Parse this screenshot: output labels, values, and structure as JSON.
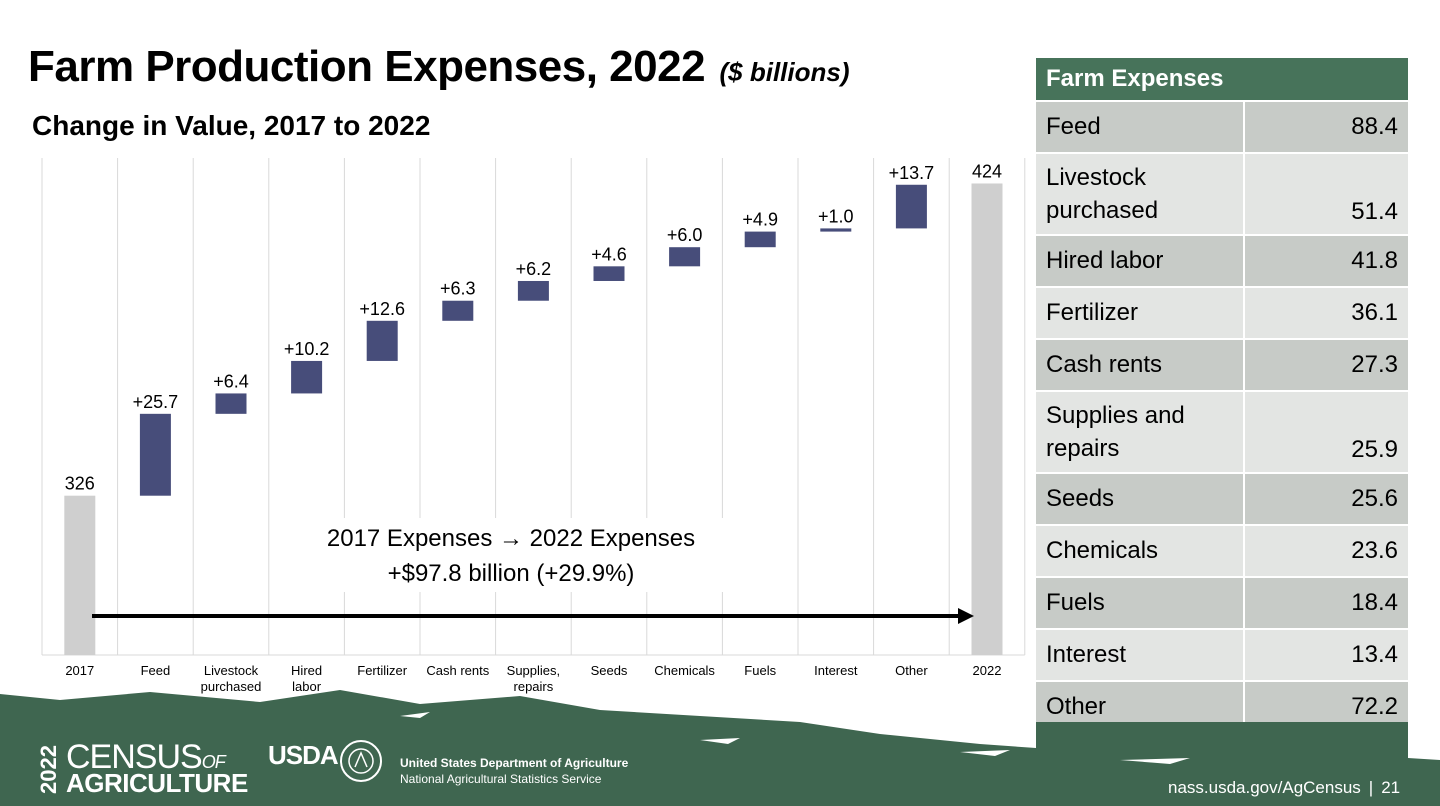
{
  "header": {
    "title": "Farm Production Expenses, 2022",
    "title_units": "($ billions)",
    "subtitle": "Change in Value, 2017 to 2022"
  },
  "chart_data": {
    "type": "bar",
    "subtype": "waterfall",
    "categories": [
      "2017",
      "Feed",
      "Livestock purchased",
      "Hired labor",
      "Fertilizer",
      "Cash rents",
      "Supplies, repairs",
      "Seeds",
      "Chemicals",
      "Fuels",
      "Interest",
      "Other",
      "2022"
    ],
    "values": [
      326,
      25.7,
      6.4,
      10.2,
      12.6,
      6.3,
      6.2,
      4.6,
      6.0,
      4.9,
      1.0,
      13.7,
      424
    ],
    "labels": [
      "326",
      "+25.7",
      "+6.4",
      "+10.2",
      "+12.6",
      "+6.3",
      "+6.2",
      "+4.6",
      "+6.0",
      "+4.9",
      "+1.0",
      "+13.7",
      "424"
    ],
    "annotation": {
      "line1": "2017 Expenses → 2022 Expenses",
      "line2": "+$97.8 billion (+29.9%)"
    },
    "colors": {
      "total": "#cfcfcf",
      "change": "#474d7a",
      "grid": "#d9d9d9",
      "arrow": "#000000"
    },
    "grid": true
  },
  "table": {
    "header": "Farm Expenses",
    "rows": [
      {
        "name": "Feed",
        "value": "88.4"
      },
      {
        "name": "Livestock purchased",
        "value": "51.4"
      },
      {
        "name": "Hired labor",
        "value": "41.8"
      },
      {
        "name": "Fertilizer",
        "value": "36.1"
      },
      {
        "name": "Cash rents",
        "value": "27.3"
      },
      {
        "name": "Supplies and repairs",
        "value": "25.9"
      },
      {
        "name": "Seeds",
        "value": "25.6"
      },
      {
        "name": "Chemicals",
        "value": "23.6"
      },
      {
        "name": "Fuels",
        "value": "18.4"
      },
      {
        "name": "Interest",
        "value": "13.4"
      },
      {
        "name": "Other",
        "value": "72.2"
      }
    ],
    "colors": {
      "header": "#47735a",
      "dark_row": "#c7cbc7",
      "light_row": "#e3e5e3"
    }
  },
  "footer": {
    "census_year": "2022",
    "census_line1": "CENSUS",
    "census_of": "OF",
    "census_line2": "AGRICULTURE",
    "usda_word": "USDA",
    "usda_line1": "United States Department of Agriculture",
    "usda_line2": "National Agricultural Statistics Service",
    "site": "nass.usda.gov/AgCensus",
    "separator": "|",
    "page_number": "21",
    "band_color": "#3f6650"
  }
}
